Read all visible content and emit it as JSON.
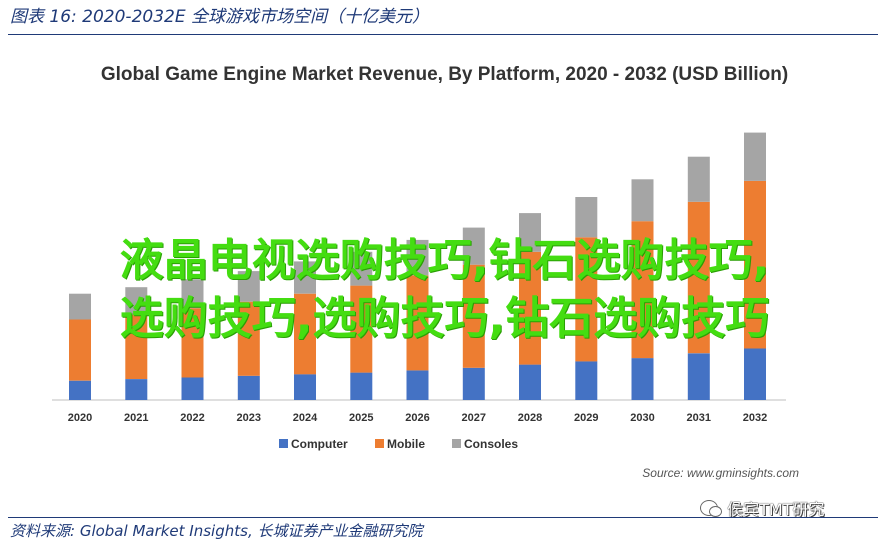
{
  "caption": "图表 16:  2020-2032E 全球游戏市场空间（十亿美元）",
  "source": "Source: www.gminsights.com",
  "footer": "资料来源: Global Market Insights, 长城证券产业金融研究院",
  "watermark": "侯宾TMT研究",
  "overlay": {
    "line1": "液晶电视选购技巧,钻石选购技巧,",
    "line2": "选购技巧,选购技巧,钻石选购技巧"
  },
  "colors": {
    "computer": "#4472c4",
    "mobile": "#ed7d31",
    "consoles": "#a5a5a5",
    "caption": "#1f3a78",
    "overlay": "#44dd11"
  },
  "chart_data": {
    "type": "bar",
    "stacked": true,
    "title": "Global Game Engine Market Revenue, By Platform, 2020 - 2032 (USD Billion)",
    "categories": [
      "2020",
      "2021",
      "2022",
      "2023",
      "2024",
      "2025",
      "2026",
      "2027",
      "2028",
      "2029",
      "2030",
      "2031",
      "2032"
    ],
    "series": [
      {
        "name": "Computer",
        "color": "#4472c4",
        "values": [
          0.6,
          0.65,
          0.7,
          0.75,
          0.8,
          0.85,
          0.92,
          1.0,
          1.1,
          1.2,
          1.3,
          1.45,
          1.6
        ]
      },
      {
        "name": "Mobile",
        "color": "#ed7d31",
        "values": [
          1.9,
          2.0,
          2.15,
          2.3,
          2.5,
          2.7,
          2.95,
          3.2,
          3.5,
          3.85,
          4.25,
          4.7,
          5.2
        ]
      },
      {
        "name": "Consoles",
        "color": "#a5a5a5",
        "values": [
          0.8,
          0.85,
          0.9,
          0.95,
          1.0,
          1.05,
          1.1,
          1.15,
          1.2,
          1.25,
          1.3,
          1.4,
          1.5
        ]
      }
    ],
    "ylim": [
      0,
      9
    ],
    "grid": false,
    "legend_position": "bottom"
  }
}
